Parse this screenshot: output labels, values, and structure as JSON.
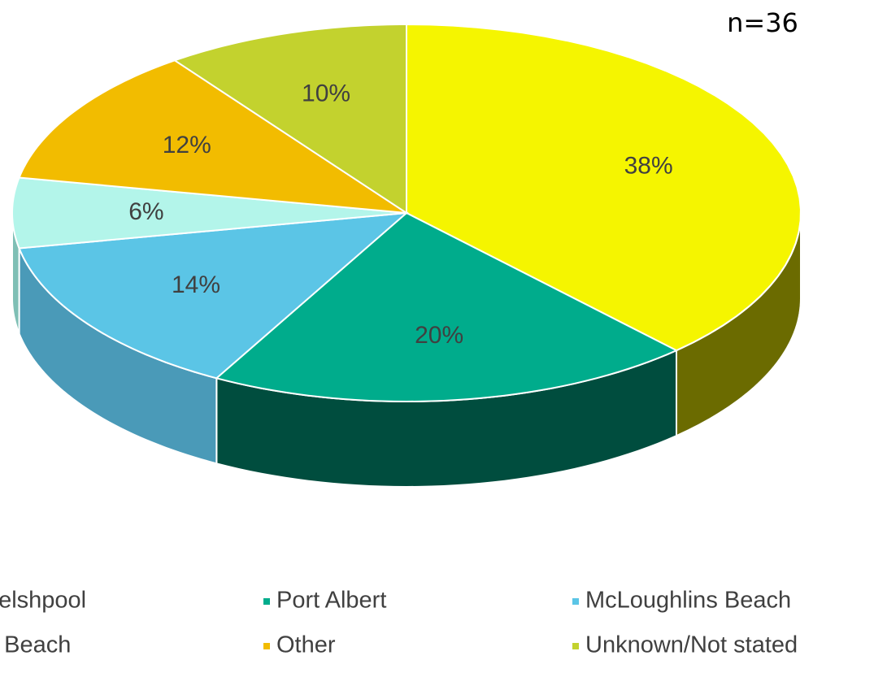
{
  "chart_data": {
    "type": "pie3d",
    "annotation": "n=36",
    "categories": [
      "Port Welshpool",
      "Port Albert",
      "McLoughlins Beach",
      "Manns Beach",
      "Other",
      "Unknown/Not stated"
    ],
    "values": [
      38,
      20,
      14,
      6,
      12,
      10
    ],
    "value_labels": [
      "38%",
      "20%",
      "14%",
      "6%",
      "12%",
      "10%"
    ],
    "colors": [
      "#f5f500",
      "#00ac8c",
      "#5bc5e6",
      "#b3f5ea",
      "#f2bc00",
      "#c3d22e"
    ],
    "side_colors": [
      "#6b6b00",
      "#004d3e",
      "#4a9ab8",
      "#7fbfb5",
      "#a07d00",
      "#7d8a1c"
    ],
    "legend": "bottom"
  }
}
